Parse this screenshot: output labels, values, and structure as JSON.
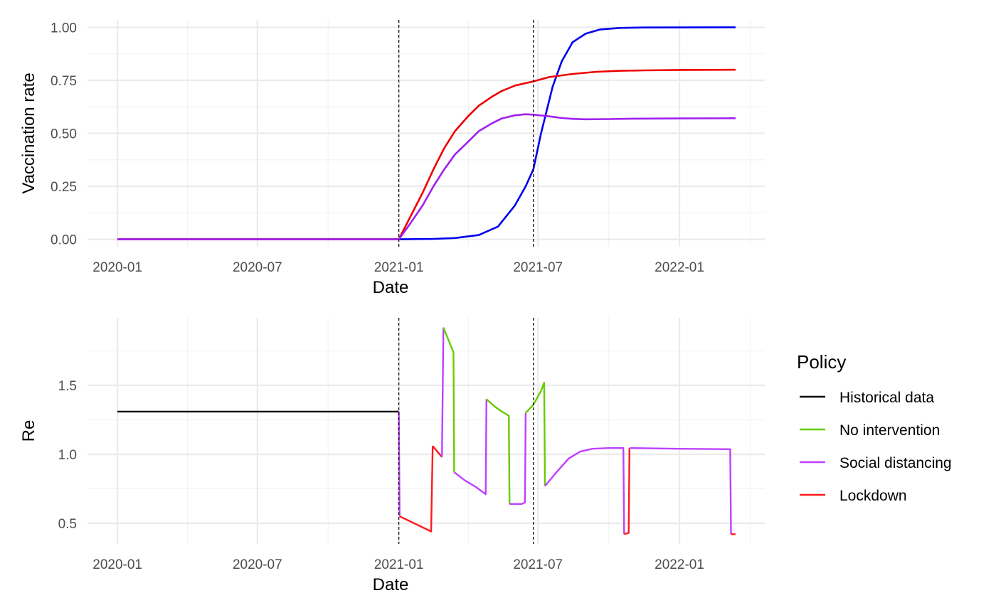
{
  "chart_data": [
    {
      "type": "line",
      "xlabel": "Date",
      "ylabel": "Vaccination rate",
      "xlim": [
        "2019-11-23",
        "2022-04-22"
      ],
      "ylim": [
        -0.035,
        1.035
      ],
      "x_ticks": [
        "2020-01-01",
        "2020-07-01",
        "2021-01-01",
        "2021-07-01",
        "2022-01-01"
      ],
      "x_tick_labels": [
        "2020-01",
        "2020-07",
        "2021-01",
        "2021-07",
        "2022-01"
      ],
      "y_ticks": [
        0,
        0.25,
        0.5,
        0.75,
        1.0
      ],
      "y_tick_labels": [
        "0.00",
        "0.25",
        "0.50",
        "0.75",
        "1.00"
      ],
      "vlines": [
        "2021-01-01",
        "2021-06-25"
      ],
      "grid": true,
      "series": [
        {
          "color": "#0000ee",
          "x": [
            "2020-01-01",
            "2021-01-01",
            "2021-02-15",
            "2021-03-15",
            "2021-04-15",
            "2021-05-10",
            "2021-06-01",
            "2021-06-15",
            "2021-06-25",
            "2021-07-05",
            "2021-07-20",
            "2021-08-01",
            "2021-08-15",
            "2021-09-01",
            "2021-09-20",
            "2021-10-15",
            "2021-11-15",
            "2022-03-15"
          ],
          "y": [
            0,
            0,
            0.002,
            0.006,
            0.02,
            0.06,
            0.16,
            0.25,
            0.33,
            0.5,
            0.72,
            0.84,
            0.93,
            0.97,
            0.99,
            0.997,
            0.999,
            1.0
          ]
        },
        {
          "color": "#ee0000",
          "x": [
            "2020-01-01",
            "2021-01-01",
            "2021-01-15",
            "2021-02-01",
            "2021-02-15",
            "2021-03-01",
            "2021-03-15",
            "2021-04-01",
            "2021-04-15",
            "2021-05-01",
            "2021-05-15",
            "2021-06-01",
            "2021-06-25",
            "2021-07-15",
            "2021-08-15",
            "2021-09-15",
            "2021-10-15",
            "2021-11-15",
            "2022-01-01",
            "2022-03-15"
          ],
          "y": [
            0,
            0,
            0.1,
            0.22,
            0.33,
            0.43,
            0.51,
            0.58,
            0.63,
            0.67,
            0.7,
            0.725,
            0.745,
            0.765,
            0.78,
            0.79,
            0.795,
            0.797,
            0.799,
            0.8
          ]
        },
        {
          "color": "#a020f0",
          "x": [
            "2020-01-01",
            "2021-01-01",
            "2021-01-15",
            "2021-02-01",
            "2021-02-15",
            "2021-03-01",
            "2021-03-15",
            "2021-04-01",
            "2021-04-15",
            "2021-05-01",
            "2021-05-15",
            "2021-06-01",
            "2021-06-15",
            "2021-06-25",
            "2021-07-15",
            "2021-08-01",
            "2021-08-15",
            "2021-09-01",
            "2021-10-01",
            "2021-11-01",
            "2022-01-01",
            "2022-03-15"
          ],
          "y": [
            0,
            0,
            0.07,
            0.16,
            0.25,
            0.33,
            0.4,
            0.46,
            0.51,
            0.545,
            0.57,
            0.585,
            0.59,
            0.588,
            0.58,
            0.572,
            0.568,
            0.566,
            0.567,
            0.569,
            0.57,
            0.571
          ]
        }
      ]
    },
    {
      "type": "line",
      "xlabel": "Date",
      "ylabel": "Re",
      "xlim": [
        "2019-11-23",
        "2022-04-22"
      ],
      "ylim": [
        0.35,
        1.99
      ],
      "x_ticks": [
        "2020-01-01",
        "2020-07-01",
        "2021-01-01",
        "2021-07-01",
        "2022-01-01"
      ],
      "x_tick_labels": [
        "2020-01",
        "2020-07",
        "2021-01",
        "2021-07",
        "2022-01"
      ],
      "y_ticks": [
        0.5,
        1.0,
        1.5
      ],
      "y_tick_labels": [
        "0.5",
        "1.0",
        "1.5"
      ],
      "vlines": [
        "2021-01-01",
        "2021-06-25"
      ],
      "grid": true,
      "segments": [
        {
          "policy": 0,
          "x": [
            "2020-01-01",
            "2021-01-01"
          ],
          "y": [
            1.31,
            1.31
          ]
        },
        {
          "policy": 2,
          "x": [
            "2021-01-01",
            "2021-01-02"
          ],
          "y": [
            1.31,
            0.55
          ]
        },
        {
          "policy": 3,
          "x": [
            "2021-01-02",
            "2021-02-12",
            "2021-02-14"
          ],
          "y": [
            0.55,
            0.44,
            1.06
          ]
        },
        {
          "policy": 3,
          "x": [
            "2021-02-14",
            "2021-02-26"
          ],
          "y": [
            1.06,
            0.98
          ]
        },
        {
          "policy": 2,
          "x": [
            "2021-02-26",
            "2021-02-28"
          ],
          "y": [
            0.98,
            1.92
          ]
        },
        {
          "policy": 1,
          "x": [
            "2021-02-28",
            "2021-03-13",
            "2021-03-14"
          ],
          "y": [
            1.92,
            1.74,
            0.87
          ]
        },
        {
          "policy": 2,
          "x": [
            "2021-03-14",
            "2021-03-28",
            "2021-04-12",
            "2021-04-24",
            "2021-04-25"
          ],
          "y": [
            0.87,
            0.81,
            0.76,
            0.71,
            1.4
          ]
        },
        {
          "policy": 1,
          "x": [
            "2021-04-25",
            "2021-05-05",
            "2021-05-15",
            "2021-05-24",
            "2021-05-25"
          ],
          "y": [
            1.4,
            1.35,
            1.31,
            1.28,
            0.64
          ]
        },
        {
          "policy": 2,
          "x": [
            "2021-05-25",
            "2021-06-10",
            "2021-06-14",
            "2021-06-15"
          ],
          "y": [
            0.64,
            0.64,
            0.65,
            1.3
          ]
        },
        {
          "policy": 1,
          "x": [
            "2021-06-15",
            "2021-06-25",
            "2021-07-05",
            "2021-07-09",
            "2021-07-10"
          ],
          "y": [
            1.3,
            1.36,
            1.46,
            1.52,
            0.77
          ]
        },
        {
          "policy": 2,
          "x": [
            "2021-07-10",
            "2021-07-25",
            "2021-08-10",
            "2021-08-25",
            "2021-09-10",
            "2021-10-01",
            "2021-10-20",
            "2021-10-21"
          ],
          "y": [
            0.77,
            0.87,
            0.97,
            1.02,
            1.04,
            1.045,
            1.045,
            0.42
          ]
        },
        {
          "policy": 3,
          "x": [
            "2021-10-21",
            "2021-10-27",
            "2021-10-28"
          ],
          "y": [
            0.42,
            0.43,
            1.045
          ]
        },
        {
          "policy": 2,
          "x": [
            "2021-10-28",
            "2022-01-01",
            "2022-03-08",
            "2022-03-09"
          ],
          "y": [
            1.045,
            1.04,
            1.037,
            0.42
          ]
        },
        {
          "policy": 3,
          "x": [
            "2022-03-09",
            "2022-03-15"
          ],
          "y": [
            0.42,
            0.42
          ]
        }
      ]
    }
  ],
  "legend": {
    "title": "Policy",
    "placement": "right",
    "entries": [
      {
        "label": "Historical data",
        "color": "#000000"
      },
      {
        "label": "No intervention",
        "color": "#66cc00"
      },
      {
        "label": "Social distancing",
        "color": "#bf40ff"
      },
      {
        "label": "Lockdown",
        "color": "#ff1a1a"
      }
    ]
  }
}
